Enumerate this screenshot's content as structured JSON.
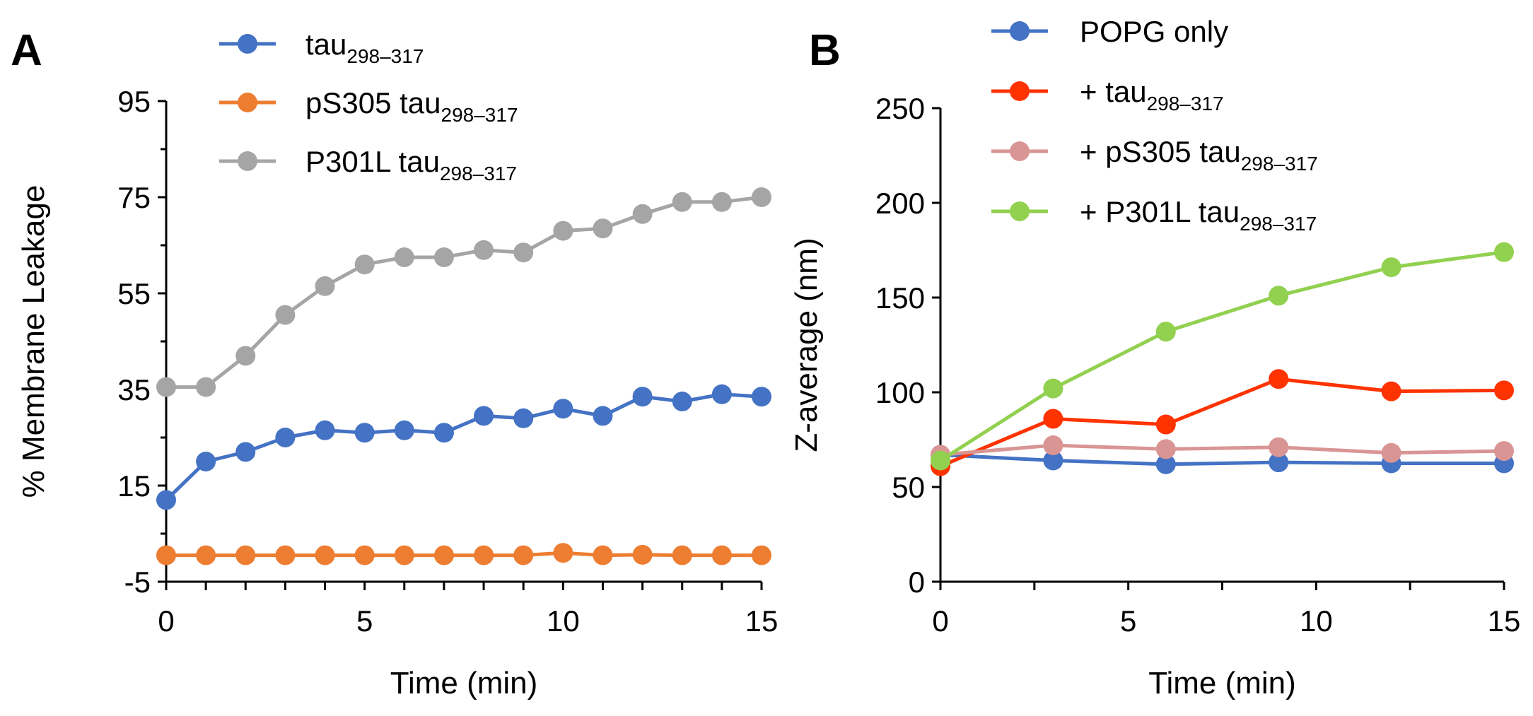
{
  "panels": [
    {
      "label": "A"
    },
    {
      "label": "B"
    }
  ],
  "chart_data": [
    {
      "type": "line",
      "panel": "A",
      "xlabel": "Time (min)",
      "ylabel": "% Membrane Leakage",
      "xlim": [
        0,
        15
      ],
      "ylim": [
        -5,
        95
      ],
      "xticks": [
        0,
        5,
        10,
        15
      ],
      "yticks": [
        -5,
        15,
        35,
        55,
        75,
        95
      ],
      "x": [
        0,
        1,
        2,
        3,
        4,
        5,
        6,
        7,
        8,
        9,
        10,
        11,
        12,
        13,
        14,
        15
      ],
      "grid": false,
      "legend_position": "top-left",
      "series": [
        {
          "name": "tau",
          "subscript": "298–317",
          "color": "#4472C4",
          "values": [
            12,
            20,
            22,
            25,
            26.5,
            26,
            26.5,
            26,
            29.5,
            29,
            31,
            29.5,
            33.5,
            32.5,
            34,
            33.5
          ]
        },
        {
          "name": "pS305 tau",
          "subscript": "298–317",
          "color": "#ED7D31",
          "values": [
            0.5,
            0.5,
            0.5,
            0.5,
            0.5,
            0.5,
            0.5,
            0.5,
            0.5,
            0.5,
            1,
            0.5,
            0.6,
            0.5,
            0.5,
            0.5
          ]
        },
        {
          "name": "P301L tau",
          "subscript": "298–317",
          "color": "#A5A5A5",
          "values": [
            35.5,
            35.5,
            42,
            50.5,
            56.5,
            61,
            62.5,
            62.5,
            64,
            63.5,
            68,
            68.5,
            71.5,
            74,
            74,
            75
          ]
        }
      ]
    },
    {
      "type": "line",
      "panel": "B",
      "xlabel": "Time (min)",
      "ylabel": "Z-average (nm)",
      "xlim": [
        0,
        15
      ],
      "ylim": [
        0,
        250
      ],
      "xticks": [
        0,
        5,
        10,
        15
      ],
      "yticks": [
        0,
        50,
        100,
        150,
        200,
        250
      ],
      "x": [
        0,
        3,
        6,
        9,
        12,
        15
      ],
      "grid": false,
      "legend_position": "top-right",
      "series": [
        {
          "name": "POPG only",
          "subscript": "",
          "color": "#4472C4",
          "values": [
            67,
            64,
            62,
            63,
            62.5,
            62.5
          ]
        },
        {
          "name": "+ tau",
          "subscript": "298–317",
          "color": "#FF3300",
          "values": [
            61,
            86,
            83,
            107,
            100.5,
            101
          ]
        },
        {
          "name": "+ pS305 tau",
          "subscript": "298–317",
          "color": "#D99594",
          "values": [
            67,
            72,
            70,
            71,
            68,
            69
          ]
        },
        {
          "name": "+ P301L tau",
          "subscript": "298–317",
          "color": "#92D050",
          "values": [
            64,
            102,
            132,
            151,
            166,
            174
          ]
        }
      ]
    }
  ]
}
